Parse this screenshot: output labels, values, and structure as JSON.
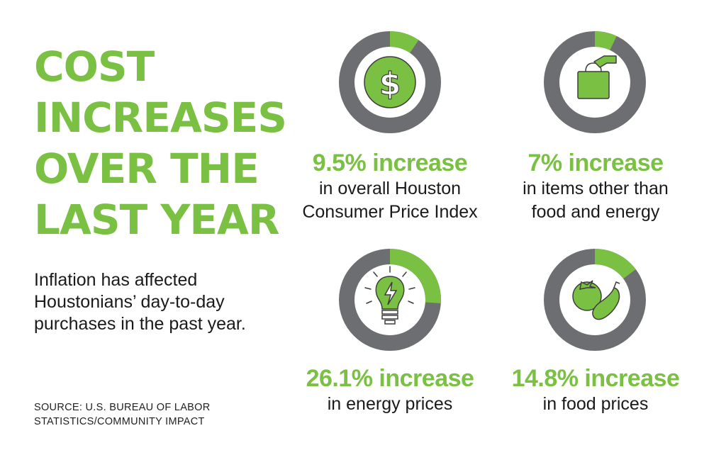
{
  "title_lines": [
    "COST",
    "INCREASES",
    "OVER THE",
    "LAST YEAR"
  ],
  "intro_lines": [
    "Inflation has affected",
    "Houstonians’ day-to-day",
    "purchases in the past year."
  ],
  "source_lines": [
    "SOURCE: U.S. BUREAU OF LABOR",
    "STATISTICS/COMMUNITY IMPACT"
  ],
  "colors": {
    "accent": "#7ac143",
    "ring_gray": "#6d6e71",
    "icon_fill": "#7ac143"
  },
  "chart_data": {
    "type": "pie",
    "series": [
      {
        "value": 9.5,
        "value_label": "9.5% increase",
        "desc_lines": [
          "in overall Houston",
          "Consumer Price Index"
        ],
        "icon": "dollar-coin-icon"
      },
      {
        "value": 7,
        "value_label": "7% increase",
        "desc_lines": [
          "in items other than",
          "food and energy"
        ],
        "icon": "shopping-bag-icon"
      },
      {
        "value": 26.1,
        "value_label": "26.1% increase",
        "desc_lines": [
          "in energy prices"
        ],
        "icon": "light-bulb-icon"
      },
      {
        "value": 14.8,
        "value_label": "14.8% increase",
        "desc_lines": [
          "in food prices"
        ],
        "icon": "vegetables-icon"
      }
    ]
  }
}
